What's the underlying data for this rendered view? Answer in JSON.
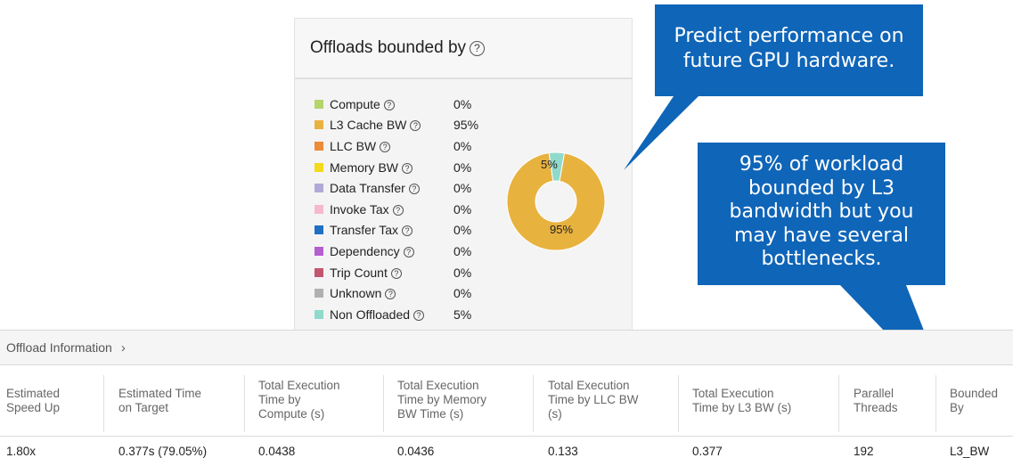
{
  "offloads_panel": {
    "title": "Offloads bounded by",
    "help_icon": "question-circle-icon",
    "legend": [
      {
        "label": "Compute",
        "value": "0%",
        "color": "#b5d56a"
      },
      {
        "label": "L3 Cache BW",
        "value": "95%",
        "color": "#e8b23f"
      },
      {
        "label": "LLC BW",
        "value": "0%",
        "color": "#ec8b38"
      },
      {
        "label": "Memory BW",
        "value": "0%",
        "color": "#f2da1b"
      },
      {
        "label": "Data Transfer",
        "value": "0%",
        "color": "#b3a9d8"
      },
      {
        "label": "Invoke Tax",
        "value": "0%",
        "color": "#f5b9cf"
      },
      {
        "label": "Transfer Tax",
        "value": "0%",
        "color": "#1f6fc3"
      },
      {
        "label": "Dependency",
        "value": "0%",
        "color": "#b45ed0"
      },
      {
        "label": "Trip Count",
        "value": "0%",
        "color": "#c2566e"
      },
      {
        "label": "Unknown",
        "value": "0%",
        "color": "#b0b0b0"
      },
      {
        "label": "Non Offloaded",
        "value": "5%",
        "color": "#8fdacb"
      }
    ],
    "donut": {
      "slices": [
        {
          "name": "L3 Cache BW",
          "value": 95,
          "label": "95%",
          "color": "#e8b23f"
        },
        {
          "name": "Non Offloaded",
          "value": 5,
          "label": "5%",
          "color": "#8fdacb"
        }
      ]
    }
  },
  "callouts": {
    "top": {
      "line1": "Predict performance on",
      "line2": "future GPU hardware.",
      "color": "#0f65b8"
    },
    "right": {
      "lines": [
        "95% of workload",
        "bounded by L3",
        "bandwidth but you",
        "may have several",
        "bottlenecks."
      ],
      "color": "#0f65b8"
    }
  },
  "offload_info": {
    "title": "Offload Information",
    "expand_icon": "chevron-right-icon",
    "columns": [
      {
        "line1": "Estimated",
        "line2": "Speed Up",
        "line3": ""
      },
      {
        "line1": "Estimated Time",
        "line2": "on Target",
        "line3": ""
      },
      {
        "line1": "Total Execution",
        "line2": "Time by",
        "line3": "Compute (s)"
      },
      {
        "line1": "Total Execution",
        "line2": "Time by Memory",
        "line3": "BW Time (s)"
      },
      {
        "line1": "Total Execution",
        "line2": "Time by LLC BW",
        "line3": "(s)"
      },
      {
        "line1": "Total Execution",
        "line2": "Time by L3 BW (s)",
        "line3": ""
      },
      {
        "line1": "Parallel",
        "line2": "Threads",
        "line3": ""
      },
      {
        "line1": "Bounded",
        "line2": "By",
        "line3": ""
      }
    ],
    "row": [
      "1.80x",
      "0.377s (79.05%)",
      "0.0438",
      "0.0436",
      "0.133",
      "0.377",
      "192",
      "L3_BW"
    ]
  }
}
